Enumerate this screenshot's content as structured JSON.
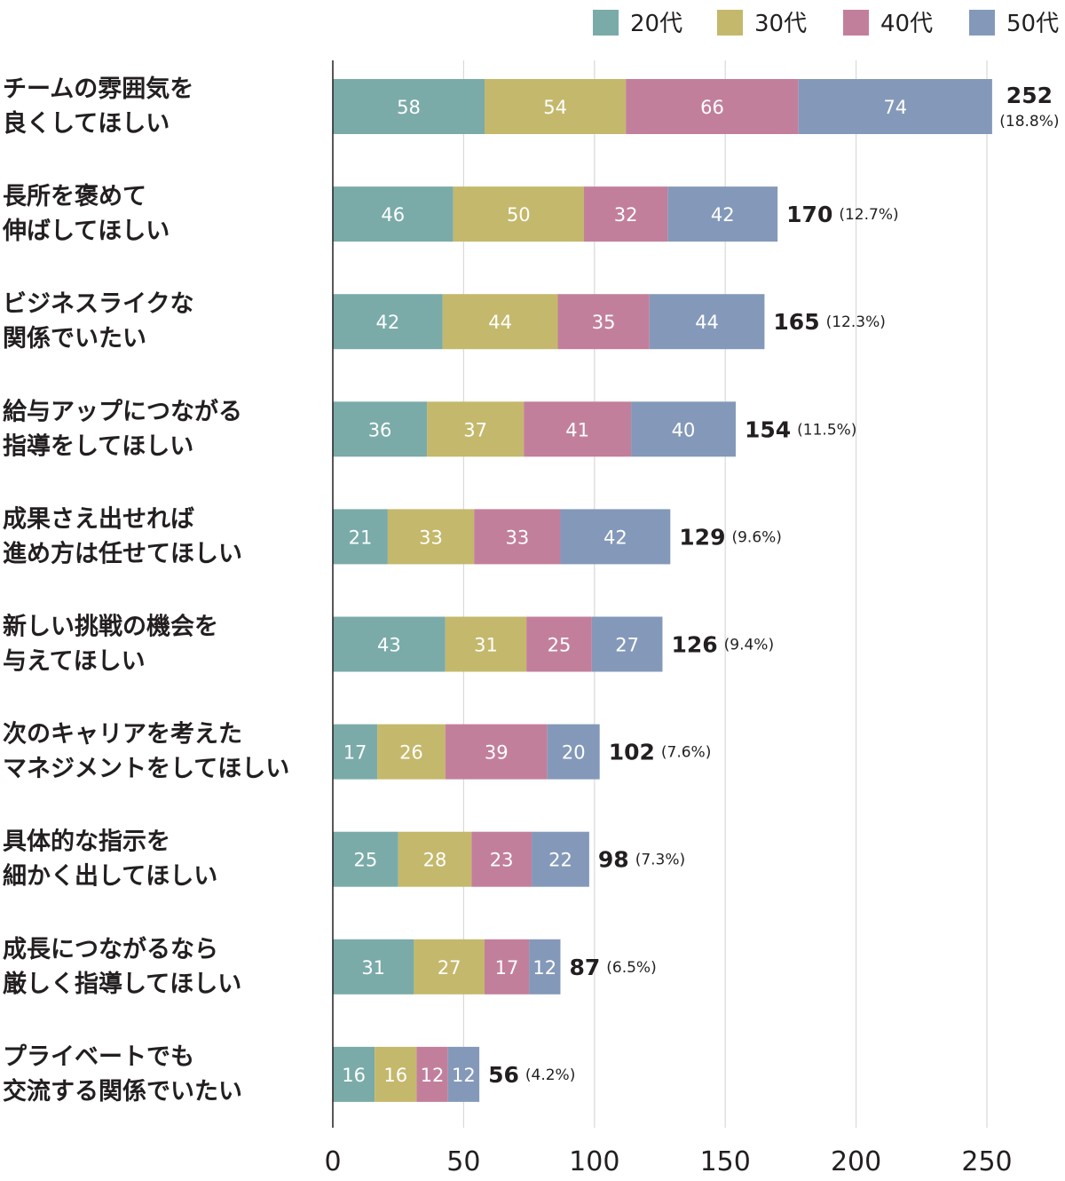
{
  "chart_data": {
    "type": "bar",
    "orientation": "horizontal",
    "stacked": true,
    "categories": [
      [
        "チームの雰囲気を",
        "良くしてほしい"
      ],
      [
        "長所を褒めて",
        "伸ばしてほしい"
      ],
      [
        "ビジネスライクな",
        "関係でいたい"
      ],
      [
        "給与アップにつながる",
        "指導をしてほしい"
      ],
      [
        "成果さえ出せれば",
        "進め方は任せてほしい"
      ],
      [
        "新しい挑戦の機会を",
        "与えてほしい"
      ],
      [
        "次のキャリアを考えた",
        "マネジメントをしてほしい"
      ],
      [
        "具体的な指示を",
        "細かく出してほしい"
      ],
      [
        "成長につながるなら",
        "厳しく指導してほしい"
      ],
      [
        "プライベートでも",
        "交流する関係でいたい"
      ]
    ],
    "series": [
      {
        "name": "20代",
        "color": "#7aaba8",
        "values": [
          58,
          46,
          42,
          36,
          21,
          43,
          17,
          25,
          31,
          16
        ]
      },
      {
        "name": "30代",
        "color": "#c4b86c",
        "values": [
          54,
          50,
          44,
          37,
          33,
          31,
          26,
          28,
          27,
          16
        ]
      },
      {
        "name": "40代",
        "color": "#c27f9b",
        "values": [
          66,
          32,
          35,
          41,
          33,
          25,
          39,
          23,
          17,
          12
        ]
      },
      {
        "name": "50代",
        "color": "#8499b9",
        "values": [
          74,
          42,
          44,
          40,
          42,
          27,
          20,
          22,
          12,
          12
        ]
      }
    ],
    "totals": [
      252,
      170,
      165,
      154,
      129,
      126,
      102,
      98,
      87,
      56
    ],
    "percents": [
      "(18.8%)",
      "(12.7%)",
      "(12.3%)",
      "(11.5%)",
      "(9.6%)",
      "(9.4%)",
      "(7.6%)",
      "(7.3%)",
      "(6.5%)",
      "(4.2%)"
    ],
    "xlim": [
      0,
      250
    ],
    "xticks": [
      0,
      50,
      100,
      150,
      200,
      250
    ],
    "grid": true,
    "legend_position": "top-right",
    "title": "",
    "xlabel": "",
    "ylabel": ""
  }
}
